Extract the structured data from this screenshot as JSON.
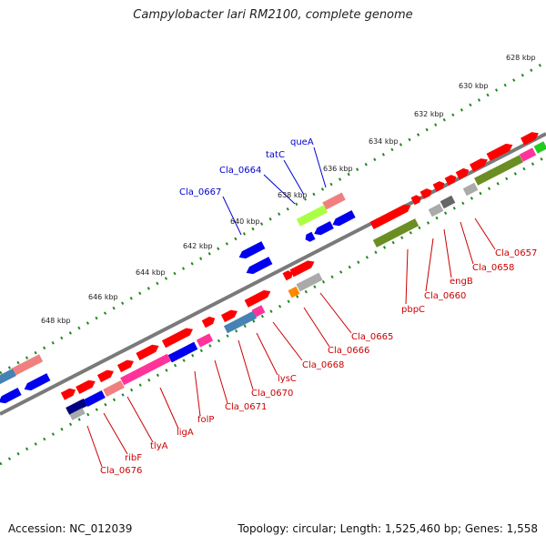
{
  "header": {
    "title": "Campylobacter lari RM2100, complete genome"
  },
  "footer": {
    "accession": "Accession: NC_012039",
    "stats": "Topology: circular; Length: 1,525,460 bp; Genes: 1,558"
  },
  "scale_labels": [
    "628 kbp",
    "630 kbp",
    "632 kbp",
    "634 kbp",
    "636 kbp",
    "638 kbp",
    "640 kbp",
    "642 kbp",
    "644 kbp",
    "646 kbp",
    "648 kbp"
  ],
  "gene_labels_blue": [
    "queA",
    "tatC",
    "Cla_0664",
    "Cla_0667"
  ],
  "gene_labels_red": [
    "Cla_0657",
    "Cla_0658",
    "engB",
    "Cla_0660",
    "pbpC",
    "Cla_0665",
    "Cla_0666",
    "Cla_0668",
    "lysC",
    "Cla_0670",
    "Cla_0671",
    "folP",
    "ligA",
    "tlyA",
    "ribF",
    "Cla_0676"
  ],
  "colors": {
    "forward_gene": "#ff0000",
    "reverse_gene": "#0000ee",
    "backbone": "#808080",
    "tick": "#228822",
    "label_red": "#cc0000",
    "label_blue": "#0000cc",
    "olive": "#6b8e23",
    "lime": "#aaff44",
    "pink": "#ff3399",
    "steel": "#4682b4",
    "salmon": "#f08080",
    "gray": "#aaaaaa",
    "orange": "#ff8800",
    "navy": "#000080"
  }
}
